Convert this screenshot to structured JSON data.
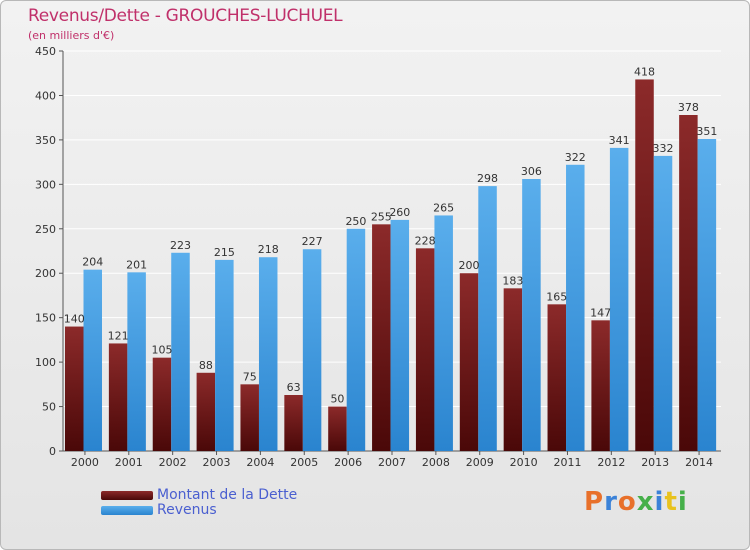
{
  "header": {
    "title": "Revenus/Dette - GROUCHES-LUCHUEL",
    "subtitle": "(en milliers d'€)"
  },
  "legend": {
    "items": [
      {
        "label": "Montant de la Dette",
        "color": "#6e1414"
      },
      {
        "label": "Revenus",
        "color": "#3d97de"
      }
    ]
  },
  "logo": {
    "text": "Proxiti",
    "colors": [
      "#e8702a",
      "#3b82d8",
      "#e8702a",
      "#46b04a",
      "#3b82d8",
      "#e8c21e",
      "#46b04a"
    ]
  },
  "colors": {
    "debt_top": "#8c2a2a",
    "debt_bottom": "#4a0808",
    "revenue_top": "#5aaeec",
    "revenue_bottom": "#2a84cf",
    "grid": "#ffffff",
    "axis_text": "#333333",
    "label_text": "#333333"
  },
  "chart_data": {
    "type": "bar",
    "title": "Revenus/Dette - GROUCHES-LUCHUEL",
    "subtitle": "(en milliers d'€)",
    "xlabel": "",
    "ylabel": "",
    "categories": [
      "2000",
      "2001",
      "2002",
      "2003",
      "2004",
      "2005",
      "2006",
      "2007",
      "2008",
      "2009",
      "2010",
      "2011",
      "2012",
      "2013",
      "2014"
    ],
    "series": [
      {
        "name": "Montant de la Dette",
        "values": [
          140,
          121,
          105,
          88,
          75,
          63,
          50,
          255,
          228,
          200,
          183,
          165,
          147,
          418,
          378
        ]
      },
      {
        "name": "Revenus",
        "values": [
          204,
          201,
          223,
          215,
          218,
          227,
          250,
          260,
          265,
          298,
          306,
          322,
          341,
          332,
          351
        ]
      }
    ],
    "ylim": [
      0,
      450
    ],
    "yticks": [
      0,
      50,
      100,
      150,
      200,
      250,
      300,
      350,
      400,
      450
    ],
    "grid": true,
    "legend_position": "bottom-left"
  }
}
